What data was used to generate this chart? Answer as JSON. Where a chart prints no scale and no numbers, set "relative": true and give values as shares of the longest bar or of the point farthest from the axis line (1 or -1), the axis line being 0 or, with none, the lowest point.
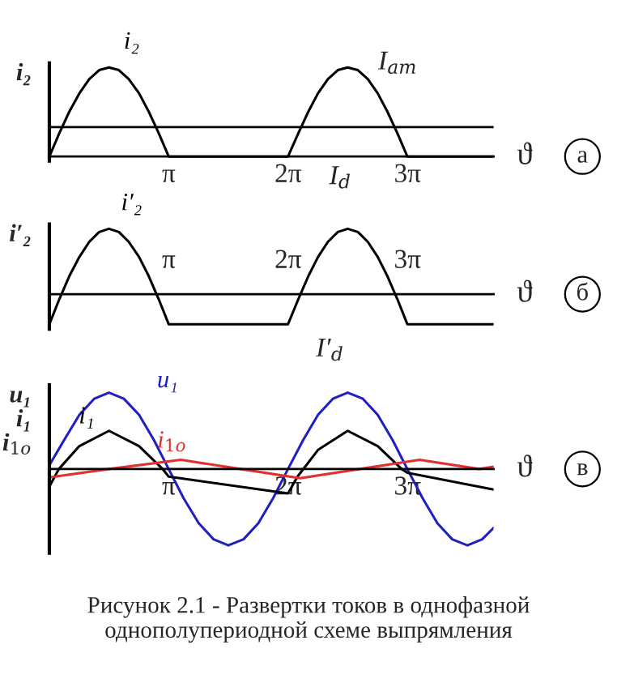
{
  "chart_data": [
    {
      "type": "line",
      "relative": true,
      "ylabel": "i₂",
      "xlabel": "ϑ",
      "xlim": [
        0,
        11.69
      ],
      "xticks": [
        {
          "value": 3.1416,
          "label": "π"
        },
        {
          "value": 6.2832,
          "label": "2π"
        },
        {
          "value": 9.4248,
          "label": "3π"
        }
      ],
      "x": [
        0,
        0.26,
        0.52,
        0.79,
        1.05,
        1.31,
        1.57,
        1.83,
        2.09,
        2.36,
        2.62,
        2.88,
        3.14,
        6.28,
        6.55,
        6.81,
        7.07,
        7.33,
        7.59,
        7.85,
        8.12,
        8.38,
        8.64,
        8.9,
        9.16,
        9.42,
        11.69
      ],
      "series": [
        {
          "name": "i₂",
          "color": "#000000",
          "values": [
            0,
            0.26,
            0.5,
            0.71,
            0.87,
            0.97,
            1,
            0.97,
            0.87,
            0.71,
            0.5,
            0.26,
            0,
            0,
            0.26,
            0.5,
            0.71,
            0.87,
            0.97,
            1,
            0.97,
            0.87,
            0.71,
            0.5,
            0.26,
            0,
            0
          ]
        }
      ],
      "ref_lines": [
        {
          "axis": "y",
          "value": 0.33,
          "label": null,
          "color": "#000000"
        }
      ],
      "annotations": [
        "а",
        "I$_{am}$",
        "I$_{d}$"
      ]
    },
    {
      "type": "line",
      "relative": true,
      "ylabel": "i′₂",
      "xlabel": "ϑ",
      "xlim": [
        0,
        11.69
      ],
      "xticks": [
        {
          "value": 3.1416,
          "label": "π"
        },
        {
          "value": 6.2832,
          "label": "2π"
        },
        {
          "value": 9.4248,
          "label": "3π"
        }
      ],
      "x": [
        0,
        0.26,
        0.52,
        0.79,
        1.05,
        1.31,
        1.57,
        1.83,
        2.09,
        2.36,
        2.62,
        2.88,
        3.14,
        6.28,
        6.55,
        6.81,
        7.07,
        7.33,
        7.59,
        7.85,
        8.12,
        8.38,
        8.64,
        8.9,
        9.16,
        9.42,
        11.69
      ],
      "series": [
        {
          "name": "i′₂",
          "color": "#000000",
          "values": [
            -0.46,
            -0.08,
            0.27,
            0.57,
            0.8,
            0.95,
            1,
            0.95,
            0.8,
            0.57,
            0.27,
            -0.08,
            -0.46,
            -0.46,
            -0.08,
            0.27,
            0.57,
            0.8,
            0.95,
            1,
            0.95,
            0.8,
            0.57,
            0.27,
            -0.08,
            -0.46,
            -0.46
          ]
        }
      ],
      "annotations": [
        "б",
        "I′$_{d}$"
      ]
    },
    {
      "type": "line",
      "relative": true,
      "ylabel": "u₁\ni₁\ni$_{1о}$",
      "xlabel": "ϑ",
      "xlim": [
        0,
        11.69
      ],
      "xticks": [
        {
          "value": 3.1416,
          "label": "π"
        },
        {
          "value": 6.2832,
          "label": "2π"
        },
        {
          "value": 9.4248,
          "label": "3π"
        }
      ],
      "series": [
        {
          "name": "u₁",
          "color": "#2020c0",
          "x": [
            0,
            0.39,
            0.79,
            1.18,
            1.57,
            1.96,
            2.36,
            2.75,
            3.14,
            3.53,
            3.93,
            4.32,
            4.71,
            5.11,
            5.5,
            5.89,
            6.28,
            6.68,
            7.07,
            7.46,
            7.85,
            8.25,
            8.64,
            9.03,
            9.42,
            9.82,
            10.21,
            10.6,
            11.0,
            11.39,
            11.69
          ],
          "values": [
            0.05,
            0.38,
            0.71,
            0.92,
            1,
            0.92,
            0.71,
            0.38,
            0,
            -0.38,
            -0.71,
            -0.92,
            -1,
            -0.92,
            -0.71,
            -0.38,
            0,
            0.38,
            0.71,
            0.92,
            1,
            0.92,
            0.71,
            0.38,
            0,
            -0.38,
            -0.71,
            -0.92,
            -1,
            -0.92,
            -0.77
          ]
        },
        {
          "name": "i₁",
          "color": "#000000",
          "x": [
            0,
            0.25,
            0.79,
            1.57,
            2.36,
            2.98,
            3.14,
            6.28,
            6.53,
            7.07,
            7.85,
            8.64,
            9.27,
            9.42,
            11.69
          ],
          "values": [
            -0.23,
            0,
            0.3,
            0.5,
            0.3,
            0,
            -0.1,
            -0.32,
            -0.1,
            0.25,
            0.5,
            0.3,
            0,
            -0.05,
            -0.27
          ]
        },
        {
          "name": "i$_{1о}$",
          "color": "#e03030",
          "x": [
            0,
            1.57,
            3.46,
            5.03,
            6.6,
            8.17,
            9.74,
            11.31,
            11.69
          ],
          "values": [
            -0.11,
            0,
            0.12,
            0,
            -0.12,
            0,
            0.12,
            0,
            0.03
          ]
        }
      ],
      "annotations": [
        "в",
        "Рисунок 2.1 - Развертки токов в однофазной однополупериодной схеме выпрямления"
      ]
    }
  ]
}
